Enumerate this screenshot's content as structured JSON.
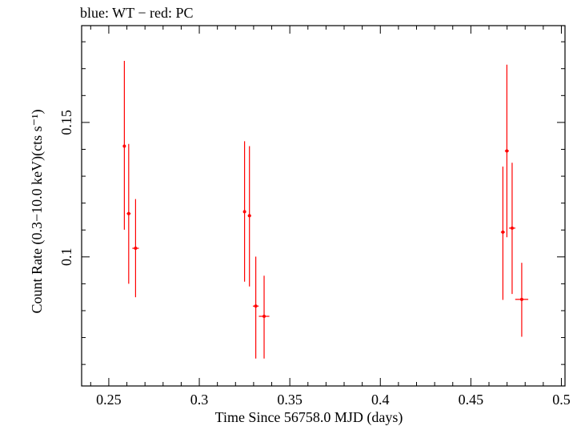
{
  "chart_data": {
    "type": "scatter",
    "title": "blue: WT − red: PC",
    "xlabel": "Time Since 56758.0 MJD (days)",
    "ylabel": "Count Rate (0.3−10.0 keV)(cts s⁻¹)",
    "xlim": [
      0.235,
      0.502
    ],
    "ylim": [
      0.052,
      0.186
    ],
    "x_ticks": [
      0.25,
      0.3,
      0.35,
      0.4,
      0.45,
      0.5
    ],
    "x_tick_labels": [
      "0.25",
      "0.3",
      "0.35",
      "0.4",
      "0.45",
      "0.5"
    ],
    "y_ticks": [
      0.1,
      0.15
    ],
    "y_tick_labels": [
      "0.1",
      "0.15"
    ],
    "grid": false,
    "series": [
      {
        "name": "PC",
        "color": "#ff0000",
        "points": [
          {
            "x": 0.2586,
            "xerr": 0.0006,
            "y": 0.1412,
            "ylo": 0.1101,
            "yhi": 0.1729
          },
          {
            "x": 0.261,
            "xerr": 0.0011,
            "y": 0.1161,
            "ylo": 0.09,
            "yhi": 0.142
          },
          {
            "x": 0.2648,
            "xerr": 0.0018,
            "y": 0.1032,
            "ylo": 0.085,
            "yhi": 0.1215
          },
          {
            "x": 0.325,
            "xerr": 0.0004,
            "y": 0.1168,
            "ylo": 0.0908,
            "yhi": 0.143
          },
          {
            "x": 0.3277,
            "xerr": 0.0009,
            "y": 0.1153,
            "ylo": 0.089,
            "yhi": 0.1412
          },
          {
            "x": 0.3312,
            "xerr": 0.0016,
            "y": 0.0817,
            "ylo": 0.0622,
            "yhi": 0.1001
          },
          {
            "x": 0.3358,
            "xerr": 0.0029,
            "y": 0.0779,
            "ylo": 0.0622,
            "yhi": 0.093
          },
          {
            "x": 0.4677,
            "xerr": 0.0011,
            "y": 0.1092,
            "ylo": 0.084,
            "yhi": 0.1336
          },
          {
            "x": 0.4699,
            "xerr": 0.0011,
            "y": 0.1394,
            "ylo": 0.1073,
            "yhi": 0.1715
          },
          {
            "x": 0.4728,
            "xerr": 0.0018,
            "y": 0.1107,
            "ylo": 0.0862,
            "yhi": 0.135
          },
          {
            "x": 0.4781,
            "xerr": 0.0036,
            "y": 0.0842,
            "ylo": 0.0703,
            "yhi": 0.0978
          }
        ]
      }
    ]
  }
}
